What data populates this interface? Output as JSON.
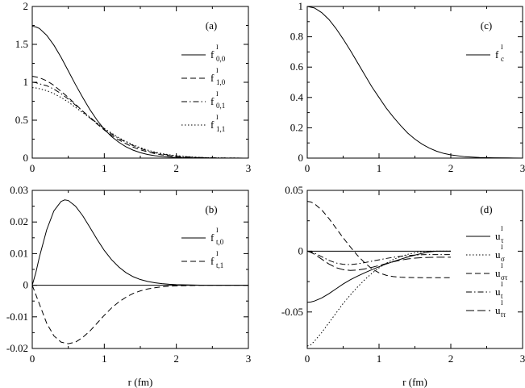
{
  "chart_data": [
    {
      "type": "line",
      "panel_label": "(a)",
      "xlim": [
        0,
        3
      ],
      "ylim": [
        0,
        2
      ],
      "xticks": [
        "0",
        "1",
        "2",
        "3"
      ],
      "yticks": [
        "0",
        "0.5",
        "1",
        "1.5",
        "2"
      ],
      "xlabel": "",
      "grid": false,
      "legend_position": "right",
      "series": [
        {
          "name": "f",
          "sub": "0,0",
          "sup": "I",
          "dash": "solid",
          "x": [
            0,
            0.05,
            0.1,
            0.2,
            0.3,
            0.4,
            0.5,
            0.6,
            0.7,
            0.8,
            0.9,
            1,
            1.1,
            1.2,
            1.3,
            1.4,
            1.5,
            1.6,
            1.7,
            1.8,
            1.9,
            2,
            2.2,
            2.4,
            2.6,
            2.8,
            3
          ],
          "y": [
            1.74,
            1.73,
            1.71,
            1.62,
            1.49,
            1.33,
            1.15,
            0.97,
            0.8,
            0.64,
            0.5,
            0.38,
            0.285,
            0.21,
            0.15,
            0.105,
            0.072,
            0.048,
            0.032,
            0.021,
            0.013,
            0.008,
            0.003,
            0.001,
            0,
            0,
            0
          ]
        },
        {
          "name": "f",
          "sub": "1,0",
          "sup": "I",
          "dash": "dashed",
          "x": [
            0,
            0.05,
            0.1,
            0.2,
            0.3,
            0.4,
            0.5,
            0.6,
            0.7,
            0.8,
            0.9,
            1,
            1.1,
            1.2,
            1.3,
            1.4,
            1.5,
            1.6,
            1.7,
            1.8,
            1.9,
            2,
            2.2,
            2.4,
            2.6,
            2.8,
            3
          ],
          "y": [
            1.08,
            1.07,
            1.06,
            1.02,
            0.96,
            0.88,
            0.8,
            0.71,
            0.62,
            0.53,
            0.45,
            0.37,
            0.3,
            0.24,
            0.19,
            0.145,
            0.11,
            0.082,
            0.06,
            0.043,
            0.03,
            0.021,
            0.01,
            0.004,
            0.002,
            0.001,
            0
          ]
        },
        {
          "name": "f",
          "sub": "0,1",
          "sup": "I",
          "dash": "dashdot",
          "x": [
            0,
            0.05,
            0.1,
            0.2,
            0.3,
            0.4,
            0.5,
            0.6,
            0.7,
            0.8,
            0.9,
            1,
            1.1,
            1.2,
            1.3,
            1.4,
            1.5,
            1.6,
            1.7,
            1.8,
            1.9,
            2,
            2.2,
            2.4,
            2.6,
            2.8,
            3
          ],
          "y": [
            1.0,
            0.995,
            0.98,
            0.955,
            0.91,
            0.85,
            0.78,
            0.7,
            0.62,
            0.54,
            0.46,
            0.39,
            0.32,
            0.26,
            0.21,
            0.165,
            0.128,
            0.097,
            0.072,
            0.053,
            0.038,
            0.027,
            0.013,
            0.006,
            0.002,
            0.001,
            0
          ]
        },
        {
          "name": "f",
          "sub": "1,1",
          "sup": "I",
          "dash": "dotted",
          "x": [
            0,
            0.05,
            0.1,
            0.2,
            0.3,
            0.4,
            0.5,
            0.6,
            0.7,
            0.8,
            0.9,
            1,
            1.1,
            1.2,
            1.3,
            1.4,
            1.5,
            1.6,
            1.7,
            1.8,
            1.9,
            2,
            2.2,
            2.4,
            2.6,
            2.8,
            3
          ],
          "y": [
            0.93,
            0.925,
            0.915,
            0.89,
            0.85,
            0.8,
            0.74,
            0.67,
            0.6,
            0.53,
            0.46,
            0.39,
            0.33,
            0.27,
            0.22,
            0.175,
            0.138,
            0.106,
            0.08,
            0.06,
            0.044,
            0.032,
            0.016,
            0.007,
            0.003,
            0.001,
            0
          ]
        }
      ]
    },
    {
      "type": "line",
      "panel_label": "(c)",
      "xlim": [
        0,
        3
      ],
      "ylim": [
        0,
        1
      ],
      "xticks": [
        "0",
        "1",
        "2",
        "3"
      ],
      "yticks": [
        "0",
        "0.2",
        "0.4",
        "0.6",
        "0.8",
        "1"
      ],
      "xlabel": "",
      "grid": false,
      "legend_position": "right",
      "series": [
        {
          "name": "f",
          "sub": "c",
          "sup": "I",
          "dash": "solid",
          "x": [
            0,
            0.1,
            0.2,
            0.3,
            0.4,
            0.5,
            0.6,
            0.7,
            0.8,
            0.9,
            1,
            1.1,
            1.2,
            1.3,
            1.4,
            1.5,
            1.6,
            1.7,
            1.8,
            1.9,
            2,
            2.2,
            2.4,
            2.6,
            2.8,
            3
          ],
          "y": [
            1.0,
            0.99,
            0.96,
            0.915,
            0.855,
            0.785,
            0.71,
            0.63,
            0.55,
            0.47,
            0.4,
            0.33,
            0.27,
            0.215,
            0.165,
            0.125,
            0.092,
            0.066,
            0.046,
            0.031,
            0.021,
            0.009,
            0.004,
            0.002,
            0.001,
            0
          ]
        }
      ]
    },
    {
      "type": "line",
      "panel_label": "(b)",
      "xlim": [
        0,
        3
      ],
      "ylim": [
        -0.02,
        0.03
      ],
      "xticks": [
        "0",
        "1",
        "2",
        "3"
      ],
      "yticks": [
        "-0.02",
        "-0.01",
        "0",
        "0.01",
        "0.02",
        "0.03"
      ],
      "xlabel": "r (fm)",
      "grid": false,
      "zero_line": true,
      "legend_position": "right",
      "series": [
        {
          "name": "f",
          "sub": "t,0",
          "sup": "I",
          "dash": "solid",
          "x": [
            0,
            0.05,
            0.1,
            0.2,
            0.3,
            0.4,
            0.45,
            0.5,
            0.6,
            0.7,
            0.8,
            0.9,
            1,
            1.1,
            1.2,
            1.3,
            1.4,
            1.5,
            1.6,
            1.7,
            1.8,
            1.9,
            2,
            2.2,
            2.4,
            2.6,
            2.8,
            3
          ],
          "y": [
            0,
            0.004,
            0.009,
            0.0175,
            0.0235,
            0.0265,
            0.027,
            0.0268,
            0.025,
            0.022,
            0.0183,
            0.0145,
            0.011,
            0.0081,
            0.0058,
            0.004,
            0.0027,
            0.0018,
            0.0012,
            0.0008,
            0.0005,
            0.0003,
            0.0002,
            0.0001,
            0,
            0,
            0,
            0
          ]
        },
        {
          "name": "f",
          "sub": "t,1",
          "sup": "I",
          "dash": "dashed",
          "x": [
            0,
            0.05,
            0.1,
            0.2,
            0.3,
            0.4,
            0.5,
            0.6,
            0.7,
            0.8,
            0.9,
            1,
            1.1,
            1.2,
            1.3,
            1.4,
            1.5,
            1.6,
            1.7,
            1.8,
            1.9,
            2,
            2.2,
            2.4,
            2.6,
            2.8,
            3
          ],
          "y": [
            0,
            -0.003,
            -0.006,
            -0.012,
            -0.016,
            -0.018,
            -0.0185,
            -0.018,
            -0.0165,
            -0.0145,
            -0.012,
            -0.0095,
            -0.0072,
            -0.0053,
            -0.0038,
            -0.0026,
            -0.0018,
            -0.0012,
            -0.0008,
            -0.0005,
            -0.0003,
            -0.0002,
            -0.0001,
            0,
            0,
            0,
            0
          ]
        }
      ]
    },
    {
      "type": "line",
      "panel_label": "(d)",
      "xlim": [
        0,
        3
      ],
      "ylim": [
        -0.08,
        0.05
      ],
      "xticks": [
        "0",
        "1",
        "2",
        "3"
      ],
      "yticks": [
        "-0.05",
        "0",
        "0.05"
      ],
      "xlabel": "r (fm)",
      "grid": false,
      "zero_line_to": 2,
      "legend_position": "right",
      "series": [
        {
          "name": "u",
          "sub": "τ",
          "sup": "I",
          "dash": "solid",
          "x": [
            0,
            0.05,
            0.1,
            0.2,
            0.3,
            0.4,
            0.5,
            0.6,
            0.7,
            0.8,
            0.9,
            1,
            1.1,
            1.2,
            1.3,
            1.4,
            1.5,
            1.6,
            1.7,
            1.8,
            1.9,
            2
          ],
          "y": [
            -0.042,
            -0.0418,
            -0.041,
            -0.0385,
            -0.035,
            -0.031,
            -0.027,
            -0.0235,
            -0.0205,
            -0.0178,
            -0.0152,
            -0.0128,
            -0.0105,
            -0.0085,
            -0.0066,
            -0.0048,
            -0.0032,
            -0.0018,
            -0.0006,
            0,
            0,
            0
          ]
        },
        {
          "name": "u",
          "sub": "σ",
          "sup": "I",
          "dash": "dotted",
          "x": [
            0,
            0.05,
            0.1,
            0.2,
            0.3,
            0.4,
            0.5,
            0.6,
            0.7,
            0.8,
            0.9,
            1,
            1.1,
            1.2,
            1.3,
            1.4,
            1.5,
            1.6,
            1.7,
            1.8,
            1.9,
            2
          ],
          "y": [
            -0.078,
            -0.077,
            -0.074,
            -0.067,
            -0.059,
            -0.051,
            -0.043,
            -0.036,
            -0.0295,
            -0.0235,
            -0.0182,
            -0.0137,
            -0.0099,
            -0.0068,
            -0.0044,
            -0.0026,
            -0.0013,
            -0.0005,
            0,
            0,
            0,
            0
          ]
        },
        {
          "name": "u",
          "sub": "στ",
          "sup": "I",
          "dash": "dashed",
          "x": [
            0,
            0.05,
            0.1,
            0.2,
            0.3,
            0.4,
            0.5,
            0.6,
            0.7,
            0.8,
            0.9,
            1,
            1.1,
            1.2,
            1.3,
            1.4,
            1.5,
            1.6,
            1.7,
            1.8,
            1.9,
            2
          ],
          "y": [
            0.041,
            0.0405,
            0.039,
            0.034,
            0.027,
            0.019,
            0.011,
            0.0035,
            -0.0035,
            -0.0095,
            -0.0145,
            -0.0178,
            -0.0198,
            -0.0209,
            -0.0214,
            -0.0216,
            -0.0217,
            -0.0218,
            -0.0218,
            -0.0218,
            -0.0218,
            -0.0218
          ]
        },
        {
          "name": "u",
          "sub": "t",
          "sup": "I",
          "dash": "dashdot",
          "x": [
            0,
            0.05,
            0.1,
            0.2,
            0.3,
            0.4,
            0.5,
            0.6,
            0.7,
            0.8,
            0.9,
            1,
            1.1,
            1.2,
            1.3,
            1.4,
            1.5,
            1.6,
            1.7,
            1.8,
            1.9,
            2
          ],
          "y": [
            0,
            -0.0005,
            -0.0015,
            -0.0045,
            -0.0075,
            -0.0097,
            -0.0108,
            -0.011,
            -0.0104,
            -0.0094,
            -0.0082,
            -0.0071,
            -0.006,
            -0.005,
            -0.0042,
            -0.0036,
            -0.0032,
            -0.0029,
            -0.0028,
            -0.0028,
            -0.0028,
            -0.0028
          ]
        },
        {
          "name": "u",
          "sub": "tτ",
          "sup": "I",
          "dash": "longdash",
          "x": [
            0,
            0.05,
            0.1,
            0.2,
            0.3,
            0.4,
            0.5,
            0.6,
            0.7,
            0.8,
            0.9,
            1,
            1.1,
            1.2,
            1.3,
            1.4,
            1.5,
            1.6,
            1.7,
            1.8,
            1.9,
            2
          ],
          "y": [
            0,
            -0.001,
            -0.0025,
            -0.0065,
            -0.0105,
            -0.0135,
            -0.0152,
            -0.0158,
            -0.0155,
            -0.0146,
            -0.0133,
            -0.0118,
            -0.0102,
            -0.0087,
            -0.0074,
            -0.0064,
            -0.0057,
            -0.0053,
            -0.0051,
            -0.005,
            -0.005,
            -0.005
          ]
        }
      ]
    }
  ]
}
